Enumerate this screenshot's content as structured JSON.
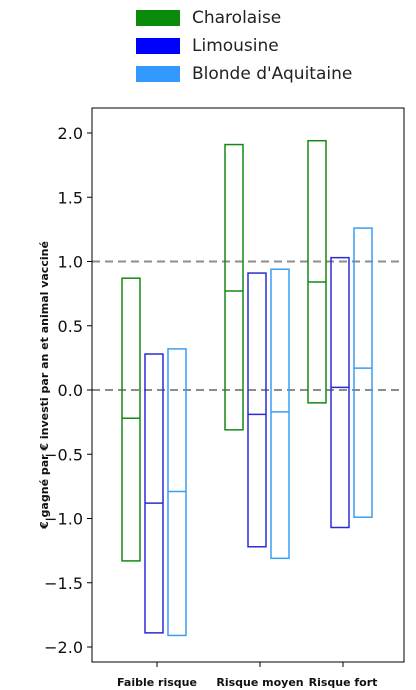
{
  "chart_data": {
    "type": "box",
    "categories": [
      "Faible risque",
      "Risque moyen",
      "Risque fort"
    ],
    "ylabel": "€ gagné par € investi par an et animal vacciné",
    "xlabel": "",
    "ylim": [
      -2.1,
      2.2
    ],
    "yticks": [
      2.0,
      1.5,
      1.0,
      0.5,
      0.0,
      -0.5,
      -1.0,
      -1.5,
      -2.0
    ],
    "ytick_labels": [
      "2.0",
      "1.5",
      "1.0",
      "0.5",
      "0.0",
      "−0.5",
      "−1.0",
      "−1.5",
      "−2.0"
    ],
    "reference_lines": [
      1.0,
      0.0
    ],
    "legend_position": "top",
    "series": [
      {
        "name": "Charolaise",
        "color": "#138a13",
        "boxes": [
          {
            "low": -1.33,
            "mid": -0.22,
            "high": 0.87
          },
          {
            "low": -0.31,
            "mid": 0.77,
            "high": 1.91
          },
          {
            "low": -0.1,
            "mid": 0.84,
            "high": 1.94
          }
        ]
      },
      {
        "name": "Limousine",
        "color": "#2b2bd6",
        "boxes": [
          {
            "low": -1.89,
            "mid": -0.88,
            "high": 0.28
          },
          {
            "low": -1.22,
            "mid": -0.19,
            "high": 0.91
          },
          {
            "low": -1.07,
            "mid": 0.02,
            "high": 1.03
          }
        ]
      },
      {
        "name": "Blonde d'Aquitaine",
        "color": "#3d9df2",
        "boxes": [
          {
            "low": -1.91,
            "mid": -0.79,
            "high": 0.32
          },
          {
            "low": -1.31,
            "mid": -0.17,
            "high": 0.94
          },
          {
            "low": -0.99,
            "mid": 0.17,
            "high": 1.26
          }
        ]
      }
    ]
  },
  "legend": {
    "items": [
      {
        "label": "Charolaise",
        "color": "#0a8a0a"
      },
      {
        "label": "Limousine",
        "color": "#0000ff"
      },
      {
        "label": "Blonde d'Aquitaine",
        "color": "#3399ff"
      }
    ]
  }
}
